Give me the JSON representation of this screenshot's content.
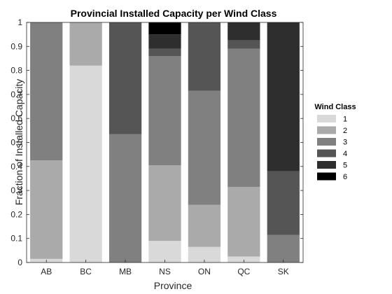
{
  "chart_data": {
    "type": "bar",
    "stacked": true,
    "title": "Provincial Installed Capacity per Wind Class",
    "xlabel": "Province",
    "ylabel": "Fraction of Installed Capacity",
    "ylim": [
      0,
      1
    ],
    "yticks": [
      "0",
      "0.1",
      "0.2",
      "0.3",
      "0.4",
      "0.5",
      "0.6",
      "0.7",
      "0.8",
      "0.9",
      "1"
    ],
    "grid": false,
    "legend_title": "Wind Class",
    "legend_position": "right",
    "categories": [
      "AB",
      "BC",
      "MB",
      "NS",
      "ON",
      "QC",
      "SK"
    ],
    "series": [
      {
        "name": "1",
        "color": "#d9d9d9",
        "values": [
          0.015,
          0.82,
          0.0,
          0.09,
          0.065,
          0.025,
          0.0
        ]
      },
      {
        "name": "2",
        "color": "#aaaaaa",
        "values": [
          0.41,
          0.18,
          0.0,
          0.315,
          0.175,
          0.29,
          0.0
        ]
      },
      {
        "name": "3",
        "color": "#808080",
        "values": [
          0.575,
          0.0,
          0.535,
          0.455,
          0.475,
          0.575,
          0.115
        ]
      },
      {
        "name": "4",
        "color": "#555555",
        "values": [
          0.0,
          0.0,
          0.465,
          0.03,
          0.285,
          0.035,
          0.265
        ]
      },
      {
        "name": "5",
        "color": "#2e2e2e",
        "values": [
          0.0,
          0.0,
          0.0,
          0.06,
          0.0,
          0.075,
          0.62
        ]
      },
      {
        "name": "6",
        "color": "#000000",
        "values": [
          0.0,
          0.0,
          0.0,
          0.05,
          0.0,
          0.0,
          0.0
        ]
      }
    ]
  }
}
